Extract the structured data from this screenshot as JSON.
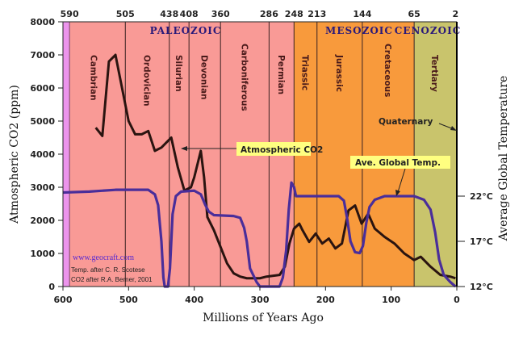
{
  "chart_data": {
    "type": "line",
    "xlabel": "Millions of Years Ago",
    "ylabel": "Atmospheric CO2 (ppm)",
    "y2label": "Average Global Temperature",
    "xlim": [
      600,
      0
    ],
    "ylim": [
      0,
      8000
    ],
    "x_ticks": [
      600,
      500,
      400,
      300,
      200,
      100,
      0
    ],
    "y_ticks": [
      0,
      1000,
      2000,
      3000,
      4000,
      5000,
      6000,
      7000,
      8000
    ],
    "y2_ticks": [
      {
        "value": 12,
        "label": "12°C"
      },
      {
        "value": 17,
        "label": "17°C"
      },
      {
        "value": 22,
        "label": "22°C"
      }
    ],
    "top_ticks": [
      590,
      505,
      438,
      408,
      360,
      286,
      248,
      213,
      144,
      65,
      2
    ],
    "eras": [
      {
        "name": "PALEOZOIC",
        "from": 590,
        "to": 248,
        "color": "#f99a96"
      },
      {
        "name": "MESOZOIC",
        "from": 248,
        "to": 65,
        "color": "#f89a3c"
      },
      {
        "name": "CENOZOIC",
        "from": 65,
        "to": 0,
        "color": "#c9c46c"
      }
    ],
    "pre_color": "#ec94ec",
    "periods": [
      {
        "name": "Cambrian",
        "from": 590,
        "to": 505
      },
      {
        "name": "Ordovician",
        "from": 505,
        "to": 438
      },
      {
        "name": "Silurian",
        "from": 438,
        "to": 408
      },
      {
        "name": "Devonian",
        "from": 408,
        "to": 360
      },
      {
        "name": "Carboniferous",
        "from": 360,
        "to": 286
      },
      {
        "name": "Permian",
        "from": 286,
        "to": 248
      },
      {
        "name": "Triassic",
        "from": 248,
        "to": 213
      },
      {
        "name": "Jurassic",
        "from": 213,
        "to": 144
      },
      {
        "name": "Cretaceous",
        "from": 144,
        "to": 65
      },
      {
        "name": "Tertiary",
        "from": 65,
        "to": 2
      }
    ],
    "series": [
      {
        "name": "Atmospheric CO2",
        "unit": "ppm",
        "color": "#2a1410",
        "points": [
          [
            550,
            4800
          ],
          [
            540,
            4550
          ],
          [
            530,
            6800
          ],
          [
            520,
            7000
          ],
          [
            510,
            6000
          ],
          [
            500,
            5000
          ],
          [
            490,
            4600
          ],
          [
            480,
            4600
          ],
          [
            470,
            4700
          ],
          [
            460,
            4100
          ],
          [
            450,
            4200
          ],
          [
            440,
            4400
          ],
          [
            435,
            4500
          ],
          [
            425,
            3600
          ],
          [
            415,
            2900
          ],
          [
            405,
            3000
          ],
          [
            400,
            3300
          ],
          [
            390,
            4100
          ],
          [
            385,
            3300
          ],
          [
            380,
            2100
          ],
          [
            370,
            1700
          ],
          [
            360,
            1200
          ],
          [
            350,
            700
          ],
          [
            340,
            400
          ],
          [
            330,
            300
          ],
          [
            320,
            250
          ],
          [
            300,
            250
          ],
          [
            290,
            300
          ],
          [
            270,
            350
          ],
          [
            262,
            600
          ],
          [
            255,
            1300
          ],
          [
            248,
            1750
          ],
          [
            240,
            1900
          ],
          [
            235,
            1700
          ],
          [
            225,
            1350
          ],
          [
            215,
            1600
          ],
          [
            205,
            1300
          ],
          [
            195,
            1450
          ],
          [
            185,
            1150
          ],
          [
            175,
            1300
          ],
          [
            165,
            2300
          ],
          [
            155,
            2450
          ],
          [
            145,
            1900
          ],
          [
            135,
            2200
          ],
          [
            125,
            1750
          ],
          [
            110,
            1500
          ],
          [
            95,
            1300
          ],
          [
            80,
            1000
          ],
          [
            65,
            800
          ],
          [
            55,
            900
          ],
          [
            40,
            600
          ],
          [
            25,
            350
          ],
          [
            10,
            300
          ],
          [
            2,
            250
          ]
        ]
      },
      {
        "name": "Ave. Global Temp.",
        "unit": "°C",
        "color": "#4a2e9a",
        "points": [
          [
            600,
            22.4
          ],
          [
            560,
            22.5
          ],
          [
            520,
            22.7
          ],
          [
            470,
            22.7
          ],
          [
            460,
            22.2
          ],
          [
            455,
            21
          ],
          [
            450,
            17
          ],
          [
            447,
            13
          ],
          [
            445,
            12
          ],
          [
            440,
            12
          ],
          [
            437,
            14
          ],
          [
            433,
            20
          ],
          [
            428,
            22
          ],
          [
            420,
            22.5
          ],
          [
            400,
            22.6
          ],
          [
            390,
            22.2
          ],
          [
            383,
            21
          ],
          [
            378,
            20.3
          ],
          [
            370,
            19.9
          ],
          [
            340,
            19.8
          ],
          [
            330,
            19.6
          ],
          [
            324,
            18.5
          ],
          [
            320,
            17
          ],
          [
            315,
            14
          ],
          [
            305,
            12.5
          ],
          [
            300,
            12
          ],
          [
            270,
            12
          ],
          [
            265,
            13
          ],
          [
            260,
            16
          ],
          [
            256,
            20.5
          ],
          [
            252,
            23.5
          ],
          [
            248,
            23
          ],
          [
            245,
            22
          ],
          [
            220,
            22
          ],
          [
            180,
            22
          ],
          [
            172,
            21.5
          ],
          [
            167,
            19.5
          ],
          [
            162,
            17
          ],
          [
            155,
            15.8
          ],
          [
            148,
            15.7
          ],
          [
            143,
            16.5
          ],
          [
            138,
            19
          ],
          [
            133,
            20.8
          ],
          [
            125,
            21.6
          ],
          [
            110,
            22
          ],
          [
            65,
            22
          ],
          [
            50,
            21.6
          ],
          [
            40,
            20.5
          ],
          [
            33,
            18
          ],
          [
            27,
            15
          ],
          [
            20,
            13.3
          ],
          [
            10,
            12.5
          ],
          [
            2,
            12
          ]
        ]
      }
    ],
    "annotations": {
      "co2_label": "Atmospheric CO2",
      "temp_label": "Ave. Global Temp.",
      "quaternary": "Quaternary",
      "website": "www.geocraft.com",
      "credit_temp": "Temp. after C. R. Scotese",
      "credit_co2": "CO2 after R.A. Berner, 2001"
    }
  }
}
